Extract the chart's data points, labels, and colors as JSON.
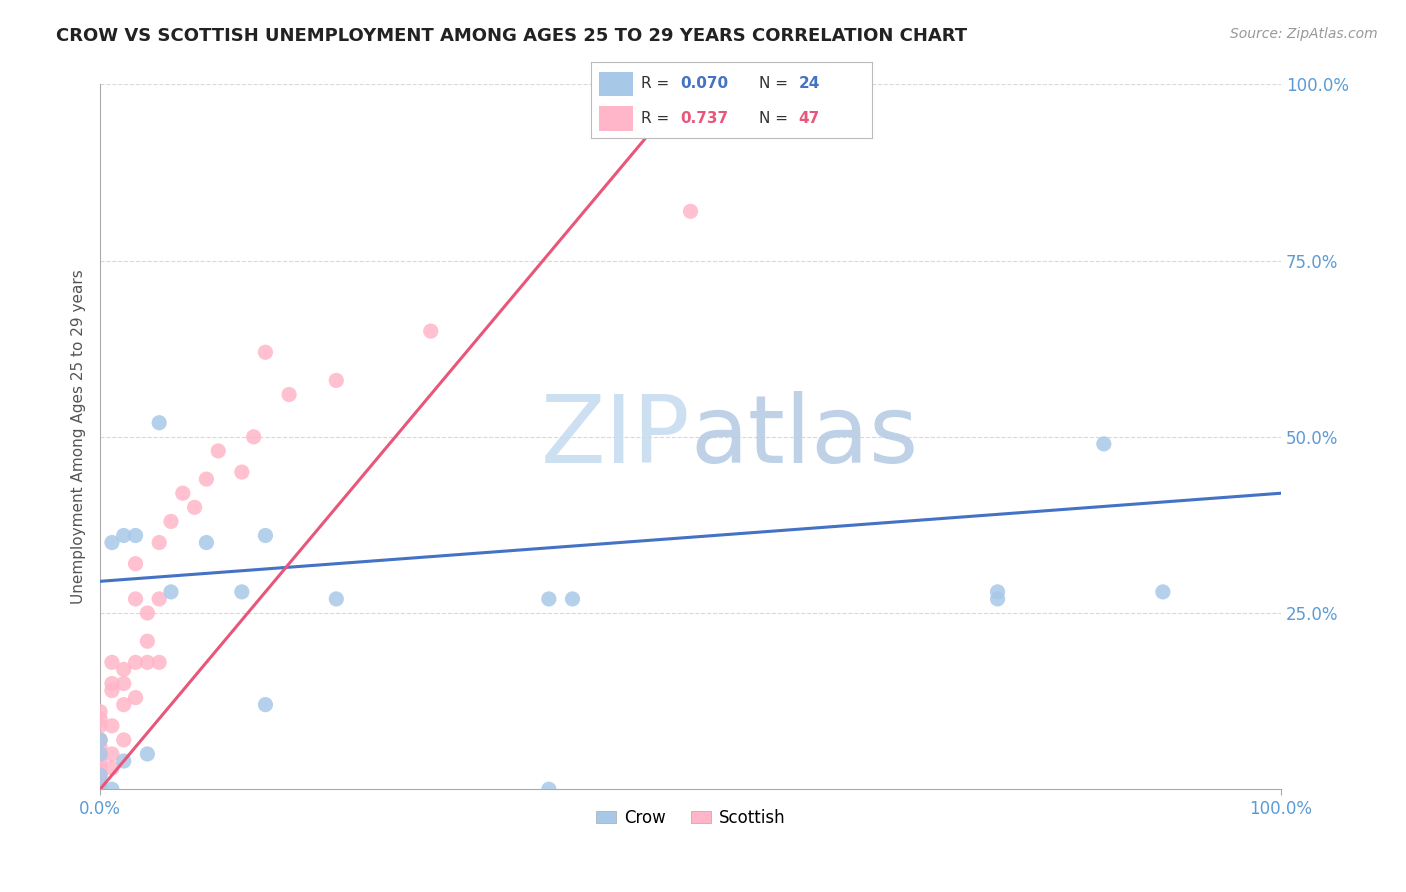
{
  "title": "CROW VS SCOTTISH UNEMPLOYMENT AMONG AGES 25 TO 29 YEARS CORRELATION CHART",
  "source": "Source: ZipAtlas.com",
  "ylabel": "Unemployment Among Ages 25 to 29 years",
  "crow_R": 0.07,
  "crow_N": 24,
  "scottish_R": 0.737,
  "scottish_N": 47,
  "crow_color": "#a8c8e8",
  "scottish_color": "#ffb6c8",
  "crow_line_color": "#4472c4",
  "scottish_line_color": "#e8567a",
  "background_color": "#ffffff",
  "grid_color": "#d0d0d0",
  "title_color": "#222222",
  "watermark_color": "#d8eaf8",
  "axis_label_color": "#5b9bd5",
  "crow_x": [
    0.0,
    0.0,
    0.0,
    0.0,
    0.01,
    0.01,
    0.02,
    0.02,
    0.03,
    0.04,
    0.05,
    0.06,
    0.09,
    0.12,
    0.14,
    0.14,
    0.2,
    0.38,
    0.38,
    0.4,
    0.76,
    0.76,
    0.85,
    0.9
  ],
  "crow_y": [
    0.0,
    0.02,
    0.05,
    0.07,
    0.0,
    0.35,
    0.04,
    0.36,
    0.36,
    0.05,
    0.52,
    0.28,
    0.35,
    0.28,
    0.12,
    0.36,
    0.27,
    0.0,
    0.27,
    0.27,
    0.27,
    0.28,
    0.49,
    0.28
  ],
  "scottish_x": [
    0.0,
    0.0,
    0.0,
    0.0,
    0.0,
    0.0,
    0.0,
    0.0,
    0.0,
    0.0,
    0.0,
    0.0,
    0.0,
    0.0,
    0.0,
    0.01,
    0.01,
    0.01,
    0.01,
    0.01,
    0.01,
    0.02,
    0.02,
    0.02,
    0.02,
    0.03,
    0.03,
    0.03,
    0.03,
    0.04,
    0.04,
    0.04,
    0.05,
    0.05,
    0.05,
    0.06,
    0.07,
    0.08,
    0.09,
    0.1,
    0.12,
    0.13,
    0.14,
    0.16,
    0.2,
    0.28,
    0.5
  ],
  "scottish_y": [
    0.0,
    0.0,
    0.0,
    0.0,
    0.0,
    0.01,
    0.02,
    0.03,
    0.04,
    0.05,
    0.06,
    0.07,
    0.09,
    0.1,
    0.11,
    0.03,
    0.05,
    0.09,
    0.14,
    0.15,
    0.18,
    0.07,
    0.12,
    0.15,
    0.17,
    0.13,
    0.18,
    0.27,
    0.32,
    0.18,
    0.21,
    0.25,
    0.18,
    0.27,
    0.35,
    0.38,
    0.42,
    0.4,
    0.44,
    0.48,
    0.45,
    0.5,
    0.62,
    0.56,
    0.58,
    0.65,
    0.82
  ],
  "crow_line_x": [
    0.0,
    1.0
  ],
  "crow_line_y": [
    0.295,
    0.42
  ],
  "scottish_line_x": [
    0.0,
    0.5
  ],
  "scottish_line_y": [
    0.0,
    1.0
  ],
  "xlim": [
    0.0,
    1.0
  ],
  "ylim": [
    0.0,
    1.0
  ],
  "xtick_vals": [
    0.0,
    1.0
  ],
  "xtick_labels": [
    "0.0%",
    "100.0%"
  ],
  "ytick_vals": [
    0.25,
    0.5,
    0.75,
    1.0
  ],
  "ytick_labels": [
    "25.0%",
    "50.0%",
    "75.0%",
    "100.0%"
  ]
}
